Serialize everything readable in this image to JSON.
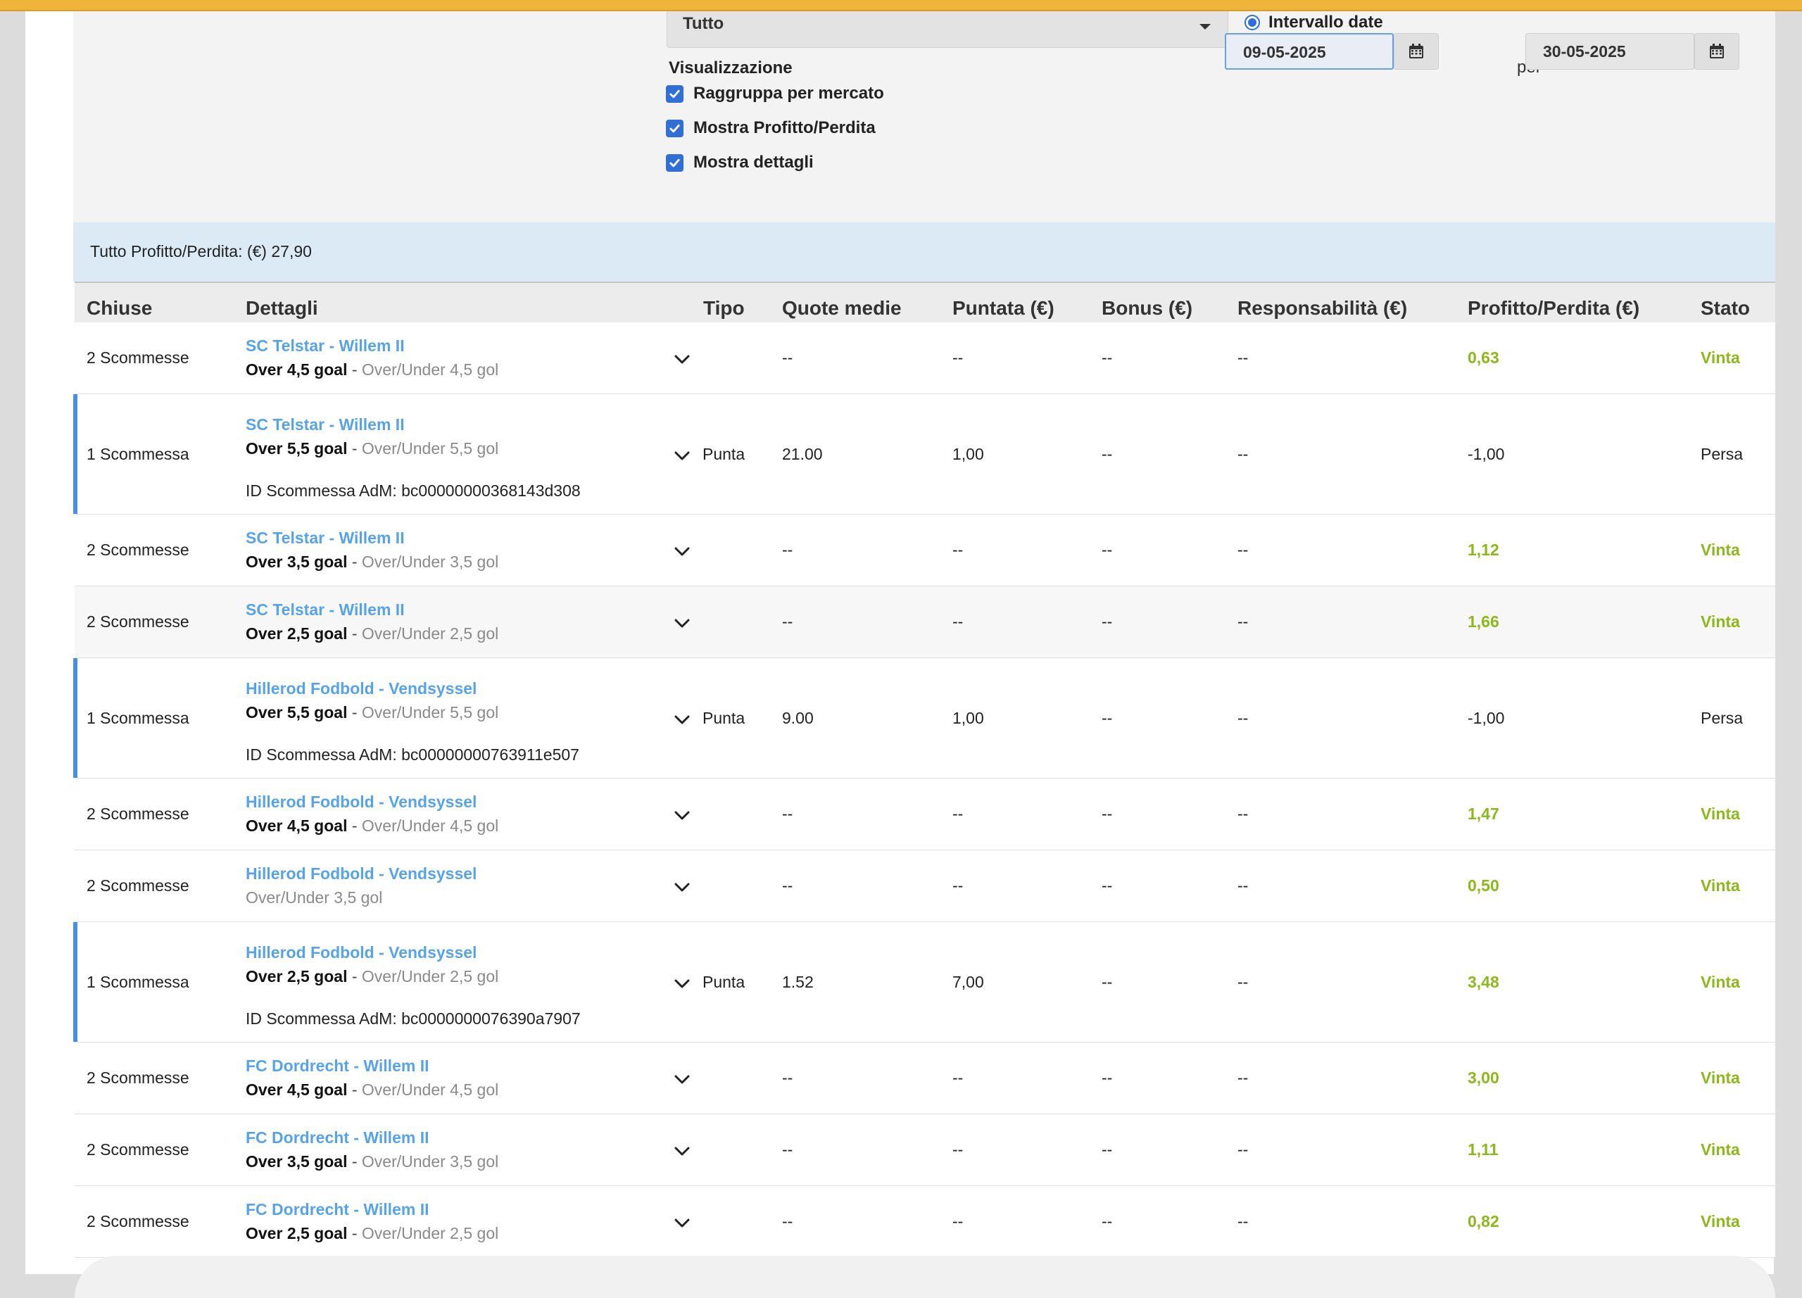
{
  "filters": {
    "select_value": "Tutto",
    "visualization_title": "Visualizzazione",
    "checkboxes": [
      {
        "label": "Raggruppa per mercato",
        "checked": true
      },
      {
        "label": "Mostra Profitto/Perdita",
        "checked": true
      },
      {
        "label": "Mostra dettagli",
        "checked": true
      }
    ],
    "date_range_label": "Intervallo date",
    "date_from": "09-05-2025",
    "date_to": "30-05-2025",
    "per_label": "per"
  },
  "summary": "Tutto Profitto/Perdita: (€) 27,90",
  "columns": {
    "closed": "Chiuse",
    "details": "Dettagli",
    "type": "Tipo",
    "avg_odds": "Quote medie",
    "stake": "Puntata (€)",
    "bonus": "Bonus (€)",
    "liability": "Responsabilità (€)",
    "pl": "Profitto/Perdita (€)",
    "status": "Stato"
  },
  "rows": [
    {
      "closed": "2 Scommesse",
      "event": "SC Telstar - Willem II",
      "selection": "Over 4,5 goal",
      "separator": " - ",
      "market": "Over/Under 4,5 gol",
      "bet_id": "",
      "type": "",
      "odds": "--",
      "stake": "--",
      "bonus": "--",
      "liability": "--",
      "pl": "0,63",
      "status": "Vinta"
    },
    {
      "closed": "1 Scommessa",
      "event": "SC Telstar - Willem II",
      "selection": "Over 5,5 goal",
      "separator": " - ",
      "market": "Over/Under 5,5 gol",
      "bet_id": "ID Scommessa AdM: bc00000000368143d308",
      "type": "Punta",
      "odds": "21.00",
      "stake": "1,00",
      "bonus": "--",
      "liability": "--",
      "pl": "-1,00",
      "status": "Persa"
    },
    {
      "closed": "2 Scommesse",
      "event": "SC Telstar - Willem II",
      "selection": "Over 3,5 goal",
      "separator": " - ",
      "market": "Over/Under 3,5 gol",
      "bet_id": "",
      "type": "",
      "odds": "--",
      "stake": "--",
      "bonus": "--",
      "liability": "--",
      "pl": "1,12",
      "status": "Vinta"
    },
    {
      "closed": "2 Scommesse",
      "event": "SC Telstar - Willem II",
      "selection": "Over 2,5 goal",
      "separator": " - ",
      "market": "Over/Under 2,5 gol",
      "bet_id": "",
      "type": "",
      "odds": "--",
      "stake": "--",
      "bonus": "--",
      "liability": "--",
      "pl": "1,66",
      "status": "Vinta"
    },
    {
      "closed": "1 Scommessa",
      "event": "Hillerod Fodbold - Vendsyssel",
      "selection": "Over 5,5 goal",
      "separator": " - ",
      "market": "Over/Under 5,5 gol",
      "bet_id": "ID Scommessa AdM: bc00000000763911e507",
      "type": "Punta",
      "odds": "9.00",
      "stake": "1,00",
      "bonus": "--",
      "liability": "--",
      "pl": "-1,00",
      "status": "Persa"
    },
    {
      "closed": "2 Scommesse",
      "event": "Hillerod Fodbold - Vendsyssel",
      "selection": "Over 4,5 goal",
      "separator": " - ",
      "market": "Over/Under 4,5 gol",
      "bet_id": "",
      "type": "",
      "odds": "--",
      "stake": "--",
      "bonus": "--",
      "liability": "--",
      "pl": "1,47",
      "status": "Vinta"
    },
    {
      "closed": "2 Scommesse",
      "event": "Hillerod Fodbold - Vendsyssel",
      "selection": "",
      "separator": "",
      "market": "Over/Under 3,5 gol",
      "bet_id": "",
      "type": "",
      "odds": "--",
      "stake": "--",
      "bonus": "--",
      "liability": "--",
      "pl": "0,50",
      "status": "Vinta"
    },
    {
      "closed": "1 Scommessa",
      "event": "Hillerod Fodbold - Vendsyssel",
      "selection": "Over 2,5 goal",
      "separator": " - ",
      "market": "Over/Under 2,5 gol",
      "bet_id": "ID Scommessa AdM: bc0000000076390a7907",
      "type": "Punta",
      "odds": "1.52",
      "stake": "7,00",
      "bonus": "--",
      "liability": "--",
      "pl": "3,48",
      "status": "Vinta"
    },
    {
      "closed": "2 Scommesse",
      "event": "FC Dordrecht - Willem II",
      "selection": "Over 4,5 goal",
      "separator": " - ",
      "market": "Over/Under 4,5 gol",
      "bet_id": "",
      "type": "",
      "odds": "--",
      "stake": "--",
      "bonus": "--",
      "liability": "--",
      "pl": "3,00",
      "status": "Vinta"
    },
    {
      "closed": "2 Scommesse",
      "event": "FC Dordrecht - Willem II",
      "selection": "Over 3,5 goal",
      "separator": " - ",
      "market": "Over/Under 3,5 gol",
      "bet_id": "",
      "type": "",
      "odds": "--",
      "stake": "--",
      "bonus": "--",
      "liability": "--",
      "pl": "1,11",
      "status": "Vinta"
    },
    {
      "closed": "2 Scommesse",
      "event": "FC Dordrecht - Willem II",
      "selection": "Over 2,5 goal",
      "separator": " - ",
      "market": "Over/Under 2,5 gol",
      "bet_id": "",
      "type": "",
      "odds": "--",
      "stake": "--",
      "bonus": "--",
      "liability": "--",
      "pl": "0,82",
      "status": "Vinta"
    }
  ]
}
